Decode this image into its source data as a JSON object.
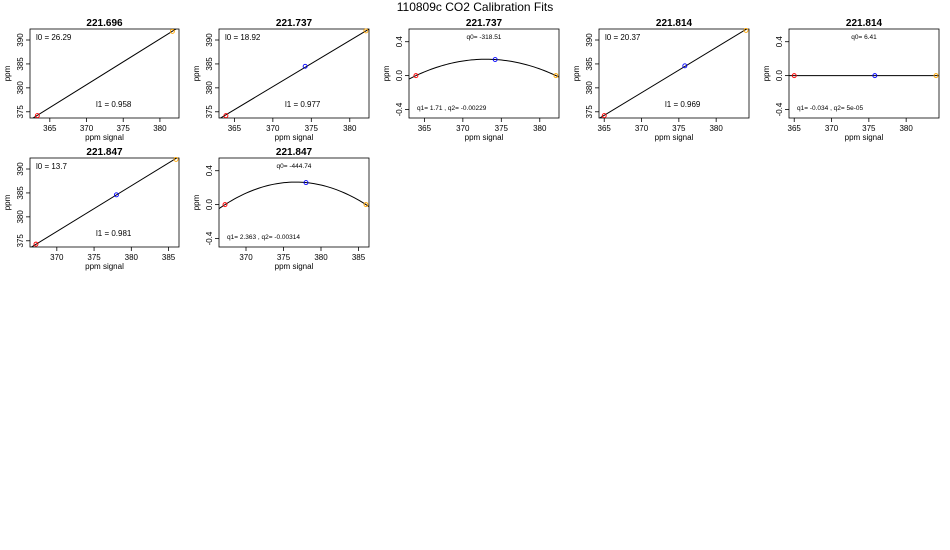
{
  "page_title": "110809c   CO2 Calibration Fits",
  "colors": {
    "line": "#000000",
    "point1": "#ff0000",
    "point2": "#0000ff",
    "point3": "#ffa500",
    "background": "#ffffff"
  },
  "chart_data": [
    {
      "type": "scatter",
      "fit": "linear",
      "title": "221.696",
      "xlabel": "ppm signal",
      "ylabel": "ppm",
      "xlim": [
        362.3,
        382.6
      ],
      "ylim": [
        373.7,
        392.3
      ],
      "xticks": [
        365,
        370,
        375,
        380
      ],
      "yticks": [
        375,
        380,
        385,
        390
      ],
      "points": [
        {
          "x": 363.3,
          "y": 374.2
        },
        {
          "x": 381.7,
          "y": 391.8
        }
      ],
      "line": [
        [
          362.3,
          373.3
        ],
        [
          382.6,
          392.7
        ]
      ],
      "annotations": [
        "l0 =  26.29",
        "l1 =  0.958"
      ]
    },
    {
      "type": "scatter",
      "fit": "linear",
      "title": "221.737",
      "xlabel": "ppm signal",
      "ylabel": "ppm",
      "xlim": [
        363.0,
        382.5
      ],
      "ylim": [
        373.7,
        392.3
      ],
      "xticks": [
        365,
        370,
        375,
        380
      ],
      "yticks": [
        375,
        380,
        385,
        390
      ],
      "points": [
        {
          "x": 363.9,
          "y": 374.2
        },
        {
          "x": 374.2,
          "y": 384.5
        },
        {
          "x": 382.1,
          "y": 391.9
        }
      ],
      "line": [
        [
          363.0,
          373.5
        ],
        [
          382.5,
          392.3
        ]
      ],
      "annotations": [
        "l0 =  18.92",
        "l1 =  0.977"
      ]
    },
    {
      "type": "scatter",
      "fit": "quadratic",
      "title": "221.737",
      "xlabel": "ppm signal",
      "ylabel": "ppm",
      "xlim": [
        363.0,
        382.5
      ],
      "ylim": [
        -0.5,
        0.55
      ],
      "xticks": [
        365,
        370,
        375,
        380
      ],
      "yticks": [
        -0.4,
        0.0,
        0.4
      ],
      "points": [
        {
          "x": 363.9,
          "y": 0.0
        },
        {
          "x": 374.2,
          "y": 0.19
        },
        {
          "x": 382.1,
          "y": 0.0
        }
      ],
      "annotations": [
        "q0= -318.51",
        "q1= 1.71 , q2= -0.00229"
      ]
    },
    {
      "type": "scatter",
      "fit": "linear",
      "title": "221.814",
      "xlabel": "ppm signal",
      "ylabel": "ppm",
      "xlim": [
        364.3,
        384.4
      ],
      "ylim": [
        373.7,
        392.3
      ],
      "xticks": [
        365,
        370,
        375,
        380
      ],
      "yticks": [
        375,
        380,
        385,
        390
      ],
      "points": [
        {
          "x": 365.0,
          "y": 374.2
        },
        {
          "x": 375.8,
          "y": 384.6
        },
        {
          "x": 384.0,
          "y": 392.0
        }
      ],
      "line": [
        [
          364.3,
          373.6
        ],
        [
          384.4,
          392.6
        ]
      ],
      "annotations": [
        "l0 =  20.37",
        "l1 =  0.969"
      ]
    },
    {
      "type": "scatter",
      "fit": "quadratic",
      "title": "221.814",
      "xlabel": "ppm signal",
      "ylabel": "ppm",
      "xlim": [
        364.3,
        384.4
      ],
      "ylim": [
        -0.5,
        0.55
      ],
      "xticks": [
        365,
        370,
        375,
        380
      ],
      "yticks": [
        -0.4,
        0.0,
        0.4
      ],
      "points": [
        {
          "x": 365.0,
          "y": 0.0
        },
        {
          "x": 375.8,
          "y": 0.0
        },
        {
          "x": 384.0,
          "y": 0.0
        }
      ],
      "annotations": [
        "q0= 6.41",
        "q1= -0.034 , q2= 5e-05"
      ]
    },
    {
      "type": "scatter",
      "fit": "linear",
      "title": "221.847",
      "xlabel": "ppm signal",
      "ylabel": "ppm",
      "xlim": [
        366.4,
        386.4
      ],
      "ylim": [
        373.7,
        392.3
      ],
      "xticks": [
        370,
        375,
        380,
        385
      ],
      "yticks": [
        375,
        380,
        385,
        390
      ],
      "points": [
        {
          "x": 367.2,
          "y": 374.3
        },
        {
          "x": 378.0,
          "y": 384.6
        },
        {
          "x": 386.0,
          "y": 392.0
        }
      ],
      "line": [
        [
          366.4,
          373.5
        ],
        [
          386.4,
          392.6
        ]
      ],
      "annotations": [
        "l0 =  13.7",
        "l1 =  0.981"
      ]
    },
    {
      "type": "scatter",
      "fit": "quadratic",
      "title": "221.847",
      "xlabel": "ppm signal",
      "ylabel": "ppm",
      "xlim": [
        366.4,
        386.4
      ],
      "ylim": [
        -0.5,
        0.55
      ],
      "xticks": [
        370,
        375,
        380,
        385
      ],
      "yticks": [
        -0.4,
        0.0,
        0.4
      ],
      "points": [
        {
          "x": 367.2,
          "y": 0.0
        },
        {
          "x": 378.0,
          "y": 0.26
        },
        {
          "x": 386.0,
          "y": 0.0
        }
      ],
      "annotations": [
        "q0= -444.74",
        "q1= 2.363 , q2= -0.00314"
      ]
    }
  ]
}
